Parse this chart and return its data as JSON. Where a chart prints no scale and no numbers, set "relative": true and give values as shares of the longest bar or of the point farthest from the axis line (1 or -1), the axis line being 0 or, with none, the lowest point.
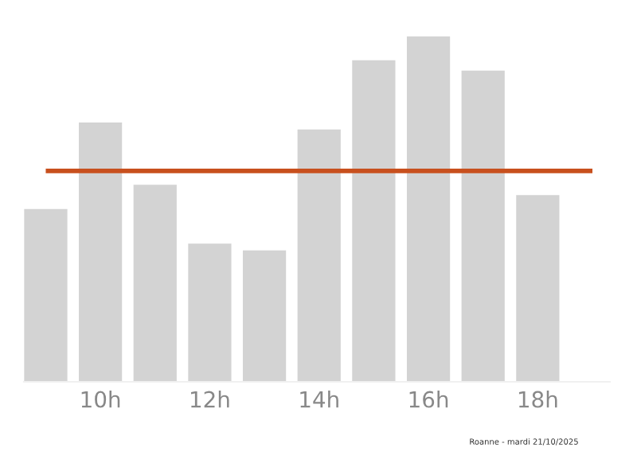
{
  "chart_data": {
    "type": "bar",
    "relative": true,
    "categories": [
      null,
      "10h",
      null,
      "12h",
      null,
      "14h",
      null,
      "16h",
      null,
      "18h",
      null
    ],
    "series": [
      {
        "color": "#d3d3d3",
        "values": [
          0.5,
          0.75,
          0.57,
          0.4,
          0.38,
          0.73,
          0.93,
          1.0,
          0.9,
          0.54,
          null
        ]
      }
    ],
    "ref_lines": [
      {
        "axis": "y",
        "value": 0.61,
        "color": "#c8501e"
      }
    ],
    "annotations": [
      "Roanne - mardi 21/10/2025"
    ],
    "grid": false,
    "legend": false
  }
}
